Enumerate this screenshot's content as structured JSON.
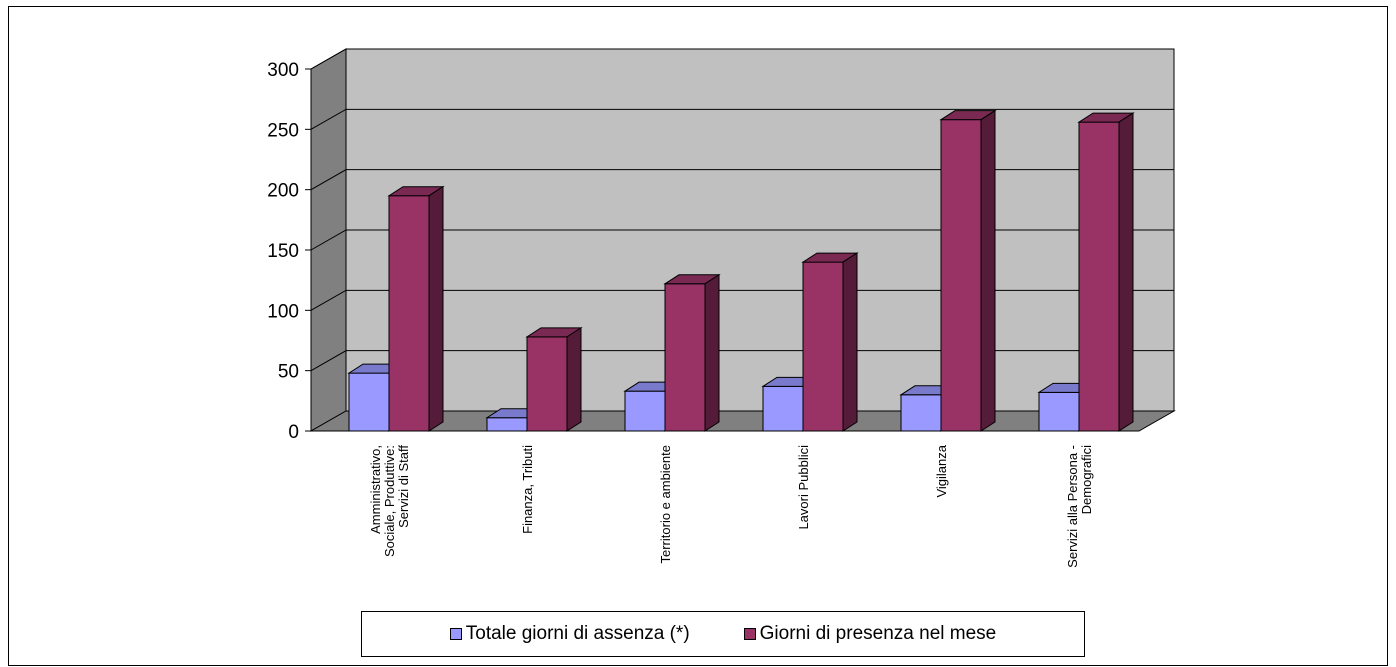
{
  "chart_data": {
    "type": "bar",
    "categories": [
      "Amministrativo, Sociale, Produttive: Servizi di Staff",
      "Finanza, Tributi",
      "Territorio e ambiente",
      "Lavori Pubblici",
      "Vigilanza",
      "Servizi alla Persona - Demografici"
    ],
    "series": [
      {
        "name": "Totale giorni di assenza (*)",
        "values": [
          48,
          11,
          33,
          37,
          30,
          32
        ],
        "color": "#9999ff"
      },
      {
        "name": "Giorni di presenza nel mese",
        "values": [
          195,
          78,
          122,
          140,
          258,
          256
        ],
        "color": "#993366"
      }
    ],
    "ylim": [
      0,
      300
    ],
    "yticks": [
      0,
      50,
      100,
      150,
      200,
      250,
      300
    ],
    "grid": true,
    "legend_position": "bottom",
    "three_d": true
  }
}
